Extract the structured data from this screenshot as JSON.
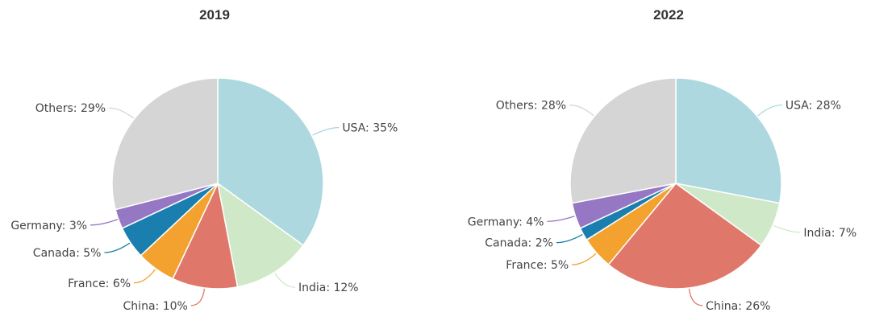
{
  "chart_data": [
    {
      "type": "pie",
      "title": "2019",
      "slices": [
        {
          "label": "USA",
          "value": 35,
          "color": "#add8e0",
          "display": "USA: 35%"
        },
        {
          "label": "India",
          "value": 12,
          "color": "#cfe9c8",
          "display": "India: 12%"
        },
        {
          "label": "China",
          "value": 10,
          "color": "#e0776b",
          "display": "China: 10%"
        },
        {
          "label": "France",
          "value": 6,
          "color": "#f3a22f",
          "display": "France: 6%"
        },
        {
          "label": "Canada",
          "value": 5,
          "color": "#1a7fae",
          "display": "Canada: 5%"
        },
        {
          "label": "Germany",
          "value": 3,
          "color": "#9677c4",
          "display": "Germany: 3%"
        },
        {
          "label": "Others",
          "value": 29,
          "color": "#d5d5d5",
          "display": "Others: 29%"
        }
      ]
    },
    {
      "type": "pie",
      "title": "2022",
      "slices": [
        {
          "label": "USA",
          "value": 28,
          "color": "#add8e0",
          "display": "USA: 28%"
        },
        {
          "label": "India",
          "value": 7,
          "color": "#cfe9c8",
          "display": "India: 7%"
        },
        {
          "label": "China",
          "value": 26,
          "color": "#e0776b",
          "display": "China: 26%"
        },
        {
          "label": "France",
          "value": 5,
          "color": "#f3a22f",
          "display": "France: 5%"
        },
        {
          "label": "Canada",
          "value": 2,
          "color": "#1a7fae",
          "display": "Canada: 2%"
        },
        {
          "label": "Germany",
          "value": 4,
          "color": "#9677c4",
          "display": "Germany: 4%"
        },
        {
          "label": "Others",
          "value": 28,
          "color": "#d5d5d5",
          "display": "Others: 28%"
        }
      ]
    }
  ]
}
